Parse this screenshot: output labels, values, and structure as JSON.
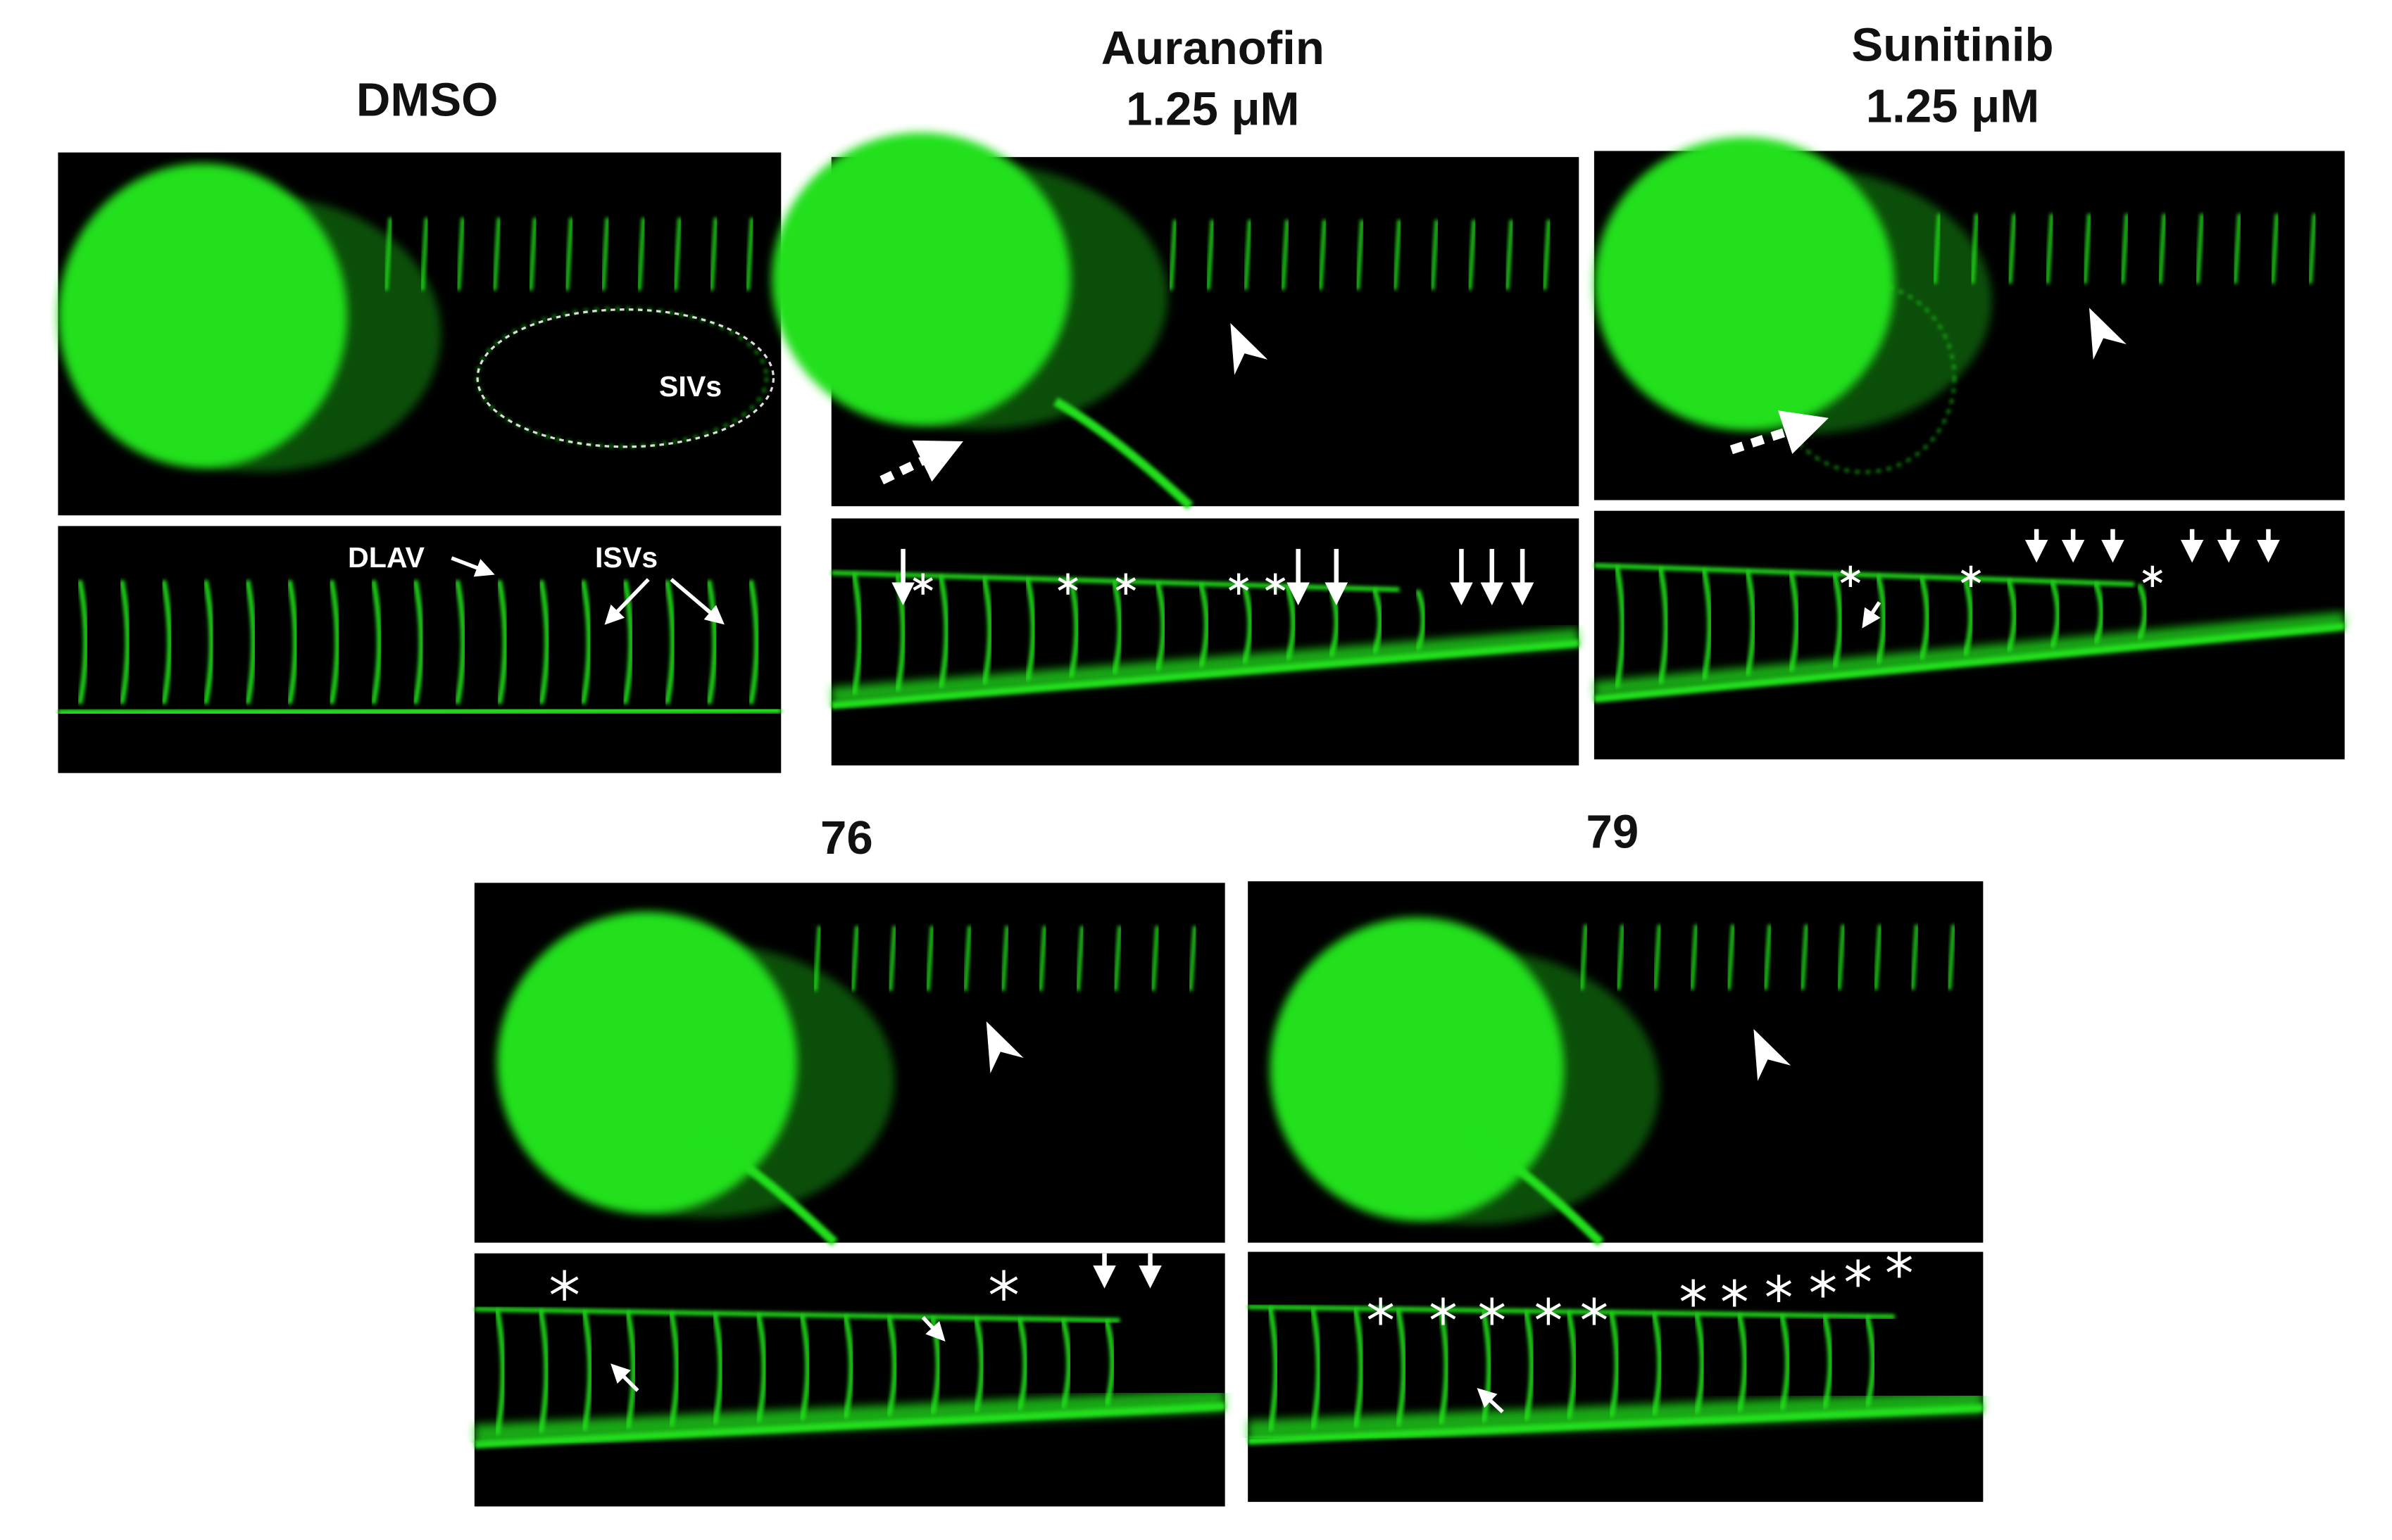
{
  "titles": {
    "dmso": "DMSO",
    "auranofin": [
      "Auranofin",
      "1.25 μM"
    ],
    "sunitinib": [
      "Sunitinib",
      "1.25 μM"
    ],
    "c76": "76",
    "c79": "79"
  },
  "annotations": {
    "sivs": "SIVs",
    "dlav": "DLAV",
    "isvs": "ISVs"
  }
}
